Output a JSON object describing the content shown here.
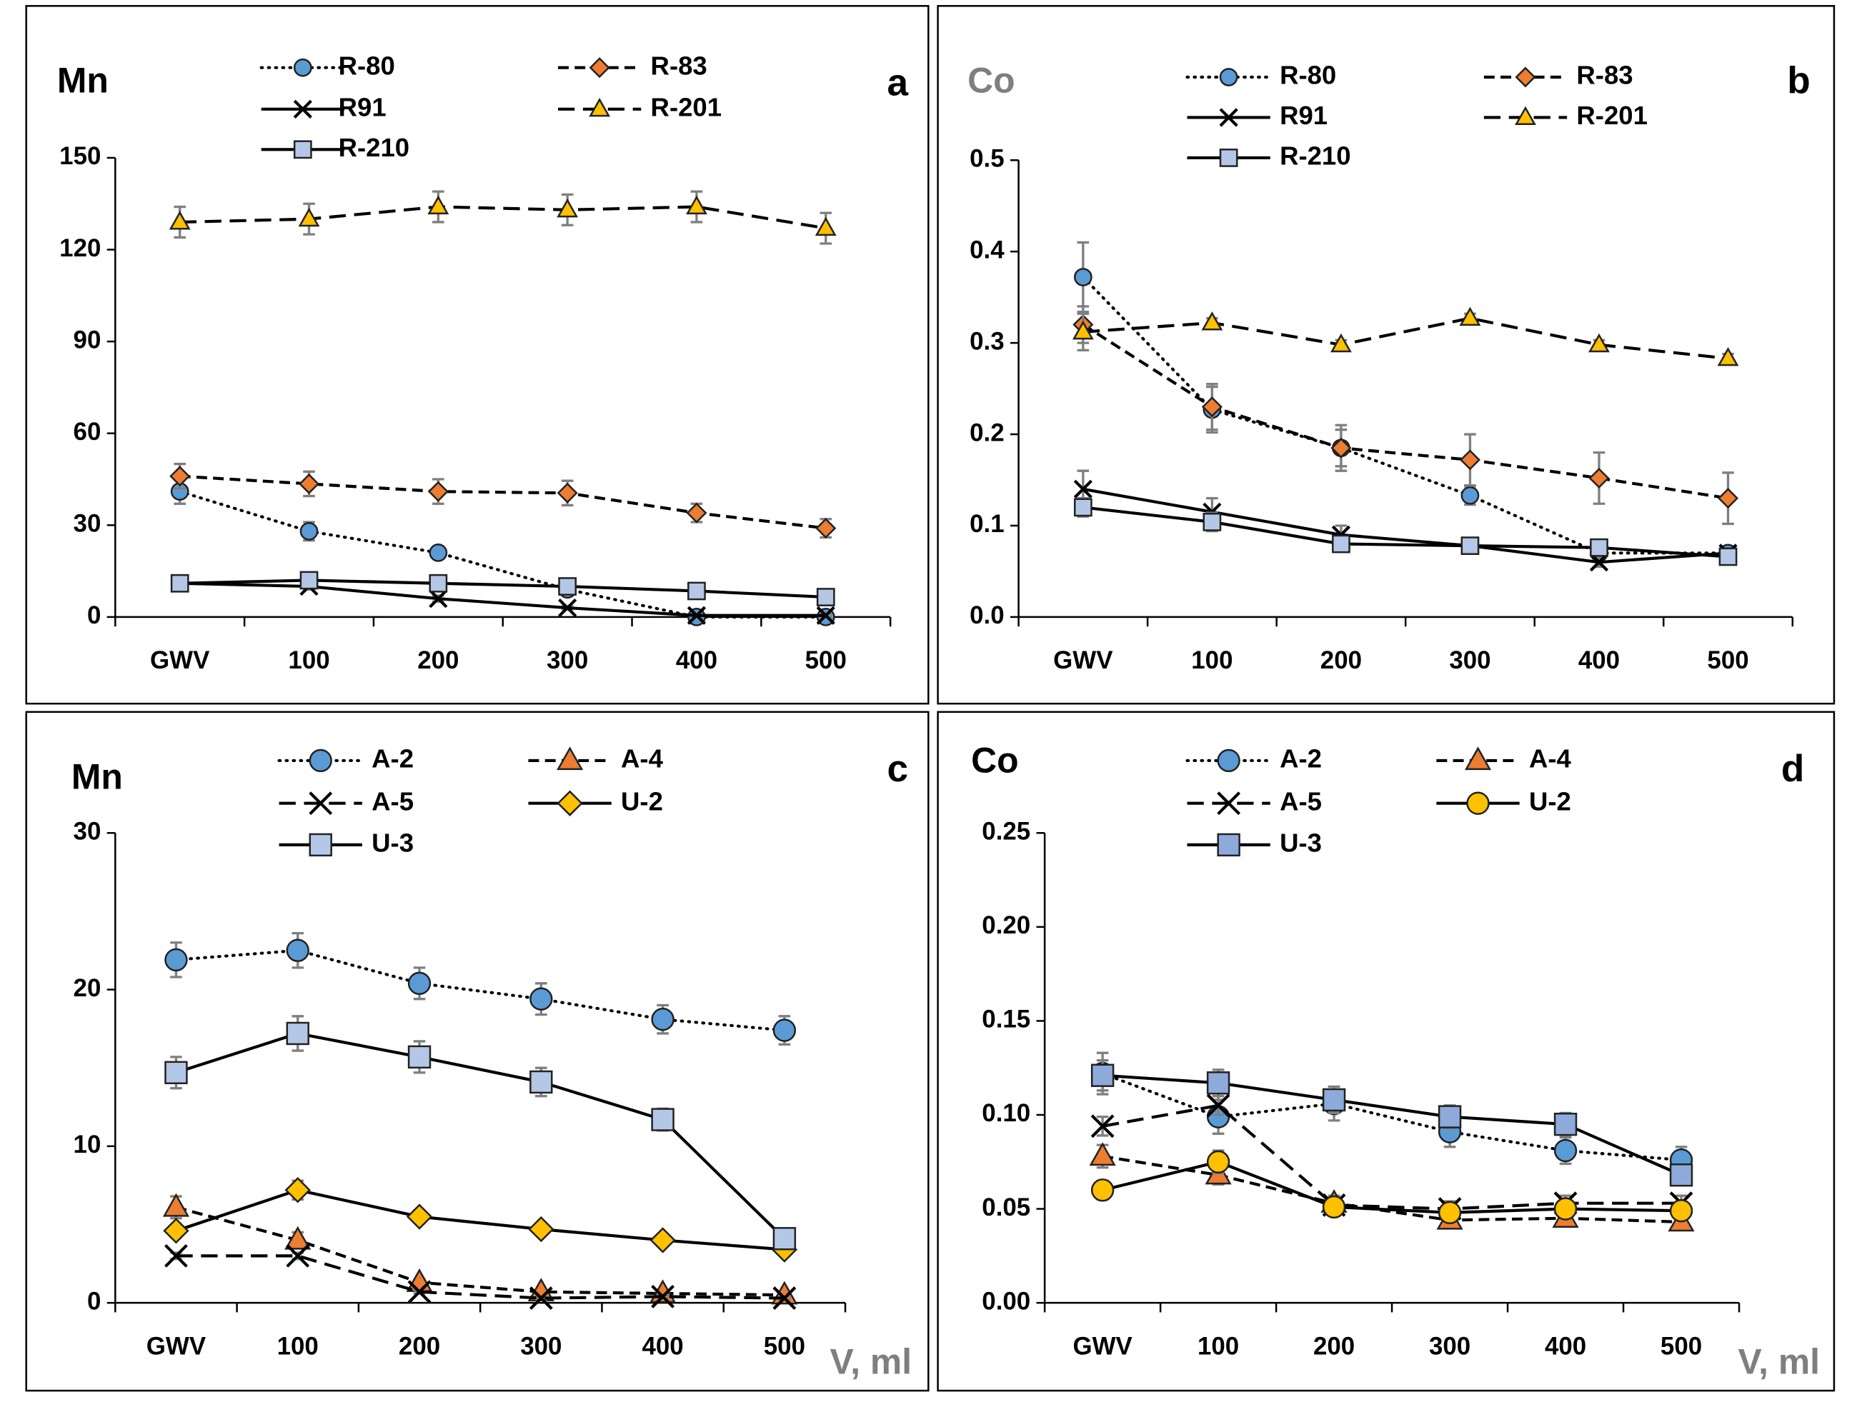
{
  "chart_data": [
    {
      "type": "line",
      "title": "Mn",
      "title_color": "#000000",
      "panel_label": "a",
      "categories": [
        "GWV",
        "100",
        "200",
        "300",
        "400",
        "500"
      ],
      "ylim": [
        0,
        150
      ],
      "yticks": [
        0,
        30,
        60,
        90,
        120,
        150
      ],
      "series": [
        {
          "name": "R-80",
          "color": "#5b9bd5",
          "marker": "circle",
          "line_style": "dot",
          "values": [
            41,
            28,
            21,
            9,
            0,
            0
          ],
          "errors": [
            4,
            3,
            2,
            1,
            0.5,
            0.5
          ]
        },
        {
          "name": "R-83",
          "color": "#ed7d31",
          "marker": "diamond",
          "line_style": "dash",
          "values": [
            46,
            43.5,
            41,
            40.5,
            34,
            29
          ],
          "errors": [
            4,
            4,
            4,
            4,
            3,
            3
          ]
        },
        {
          "name": "R91",
          "color": "#000000",
          "marker": "x",
          "line_style": "solid",
          "values": [
            11,
            10,
            6,
            3,
            0.5,
            0.5
          ],
          "errors": [
            1,
            1,
            1,
            0.5,
            0.5,
            0.5
          ]
        },
        {
          "name": "R-201",
          "color": "#ffc000",
          "marker": "triangle",
          "line_style": "longdash",
          "values": [
            129,
            130,
            134,
            133,
            134,
            127
          ],
          "errors": [
            5,
            5,
            5,
            5,
            5,
            5
          ]
        },
        {
          "name": "R-210",
          "color": "#b4c7e7",
          "marker": "square",
          "line_style": "solid",
          "values": [
            11,
            12,
            11,
            10,
            8.5,
            6.5
          ],
          "errors": [
            1,
            1,
            1,
            1,
            1,
            1
          ]
        }
      ]
    },
    {
      "type": "line",
      "title": "Co",
      "title_color": "#7f7f7f",
      "panel_label": "b",
      "categories": [
        "GWV",
        "100",
        "200",
        "300",
        "400",
        "500"
      ],
      "ylim": [
        0,
        0.5
      ],
      "yticks": [
        {
          "value": 0,
          "label": "0.0"
        },
        0.1,
        0.2,
        0.3,
        0.4,
        0.5
      ],
      "series": [
        {
          "name": "R-80",
          "color": "#5b9bd5",
          "marker": "circle",
          "line_style": "dot",
          "values": [
            0.372,
            0.227,
            0.185,
            0.133,
            0.07,
            0.07
          ],
          "errors": [
            0.038,
            0.025,
            0.02,
            0.01,
            0.005,
            0.005
          ]
        },
        {
          "name": "R-83",
          "color": "#ed7d31",
          "marker": "diamond",
          "line_style": "dash",
          "values": [
            0.32,
            0.23,
            0.185,
            0.172,
            0.152,
            0.13
          ],
          "errors": [
            0.02,
            0.025,
            0.025,
            0.028,
            0.028,
            0.028
          ]
        },
        {
          "name": "R91",
          "color": "#000000",
          "marker": "x",
          "line_style": "solid",
          "values": [
            0.14,
            0.115,
            0.09,
            0.078,
            0.06,
            0.07
          ],
          "errors": [
            0.02,
            0.015,
            0.01,
            0.005,
            0.005,
            0.005
          ]
        },
        {
          "name": "R-201",
          "color": "#ffc000",
          "marker": "triangle",
          "line_style": "longdash",
          "values": [
            0.312,
            0.322,
            0.298,
            0.327,
            0.298,
            0.283
          ],
          "errors": [
            0.02,
            0.005,
            0.005,
            0.005,
            0.005,
            0.005
          ]
        },
        {
          "name": "R-210",
          "color": "#b4c7e7",
          "marker": "square",
          "line_style": "solid",
          "values": [
            0.12,
            0.104,
            0.08,
            0.078,
            0.076,
            0.066
          ],
          "errors": [
            0.01,
            0.01,
            0.005,
            0.005,
            0.005,
            0.005
          ]
        }
      ]
    },
    {
      "type": "line",
      "title": "Mn",
      "title_color": "#000000",
      "panel_label": "c",
      "x_label": "V, ml",
      "categories": [
        "GWV",
        "100",
        "200",
        "300",
        "400",
        "500"
      ],
      "ylim": [
        0,
        30
      ],
      "yticks": [
        0,
        10,
        20,
        30
      ],
      "series": [
        {
          "name": "A-2",
          "color": "#5b9bd5",
          "marker": "circle",
          "line_style": "dot",
          "values": [
            21.9,
            22.5,
            20.4,
            19.4,
            18.1,
            17.4
          ],
          "errors": [
            1.1,
            1.1,
            1,
            1,
            0.9,
            0.9
          ]
        },
        {
          "name": "A-4",
          "color": "#ed7d31",
          "marker": "triangle",
          "line_style": "dash",
          "values": [
            6.1,
            4.0,
            1.3,
            0.7,
            0.6,
            0.5
          ],
          "errors": [
            0.7,
            0.5,
            0.2,
            0.1,
            0.1,
            0.1
          ]
        },
        {
          "name": "A-5",
          "color": "#000000",
          "marker": "x",
          "line_style": "longdash",
          "values": [
            3.0,
            3.0,
            0.7,
            0.3,
            0.4,
            0.3
          ],
          "errors": [
            0.2,
            0.2,
            0.1,
            0.1,
            0.1,
            0.1
          ]
        },
        {
          "name": "U-2",
          "color": "#ffc000",
          "marker": "diamond",
          "line_style": "solid",
          "values": [
            4.6,
            7.2,
            5.5,
            4.7,
            4.0,
            3.4
          ],
          "errors": [
            0.4,
            0.6,
            0.4,
            0.3,
            0.3,
            0.3
          ]
        },
        {
          "name": "U-3",
          "color": "#b4c7e7",
          "marker": "square",
          "line_style": "solid",
          "values": [
            14.7,
            17.2,
            15.7,
            14.1,
            11.7,
            4.1
          ],
          "errors": [
            1,
            1.1,
            1,
            0.9,
            0.7,
            0.3
          ]
        }
      ]
    },
    {
      "type": "line",
      "title": "Co",
      "title_color": "#000000",
      "panel_label": "d",
      "x_label": "V, ml",
      "categories": [
        "GWV",
        "100",
        "200",
        "300",
        "400",
        "500"
      ],
      "ylim": [
        0,
        0.25
      ],
      "yticks": [
        {
          "value": 0,
          "label": "0.00"
        },
        0.05,
        {
          "value": 0.1,
          "label": "0.10"
        },
        0.15,
        {
          "value": 0.2,
          "label": "0.20"
        },
        0.25
      ],
      "series": [
        {
          "name": "A-2",
          "color": "#5b9bd5",
          "marker": "circle",
          "line_style": "dot",
          "values": [
            0.122,
            0.099,
            0.106,
            0.091,
            0.081,
            0.076
          ],
          "errors": [
            0.011,
            0.009,
            0.009,
            0.008,
            0.007,
            0.007
          ]
        },
        {
          "name": "A-4",
          "color": "#ed7d31",
          "marker": "triangle",
          "line_style": "dash",
          "values": [
            0.078,
            0.068,
            0.053,
            0.044,
            0.045,
            0.043
          ],
          "errors": [
            0.006,
            0.005,
            0.004,
            0.004,
            0.004,
            0.004
          ]
        },
        {
          "name": "A-5",
          "color": "#000000",
          "marker": "x",
          "line_style": "longdash",
          "values": [
            0.094,
            0.105,
            0.052,
            0.05,
            0.053,
            0.053
          ],
          "errors": [
            0.005,
            0.005,
            0.004,
            0.004,
            0.004,
            0.004
          ]
        },
        {
          "name": "U-2",
          "color": "#ffc000",
          "marker": "circle",
          "line_style": "solid",
          "values": [
            0.06,
            0.075,
            0.051,
            0.048,
            0.05,
            0.049
          ],
          "errors": [
            0.005,
            0.006,
            0.004,
            0.004,
            0.004,
            0.004
          ]
        },
        {
          "name": "U-3",
          "color": "#8eaadb",
          "marker": "square",
          "line_style": "solid",
          "values": [
            0.121,
            0.117,
            0.108,
            0.099,
            0.095,
            0.068
          ],
          "errors": [
            0.008,
            0.007,
            0.007,
            0.006,
            0.006,
            0.005
          ]
        }
      ]
    }
  ]
}
